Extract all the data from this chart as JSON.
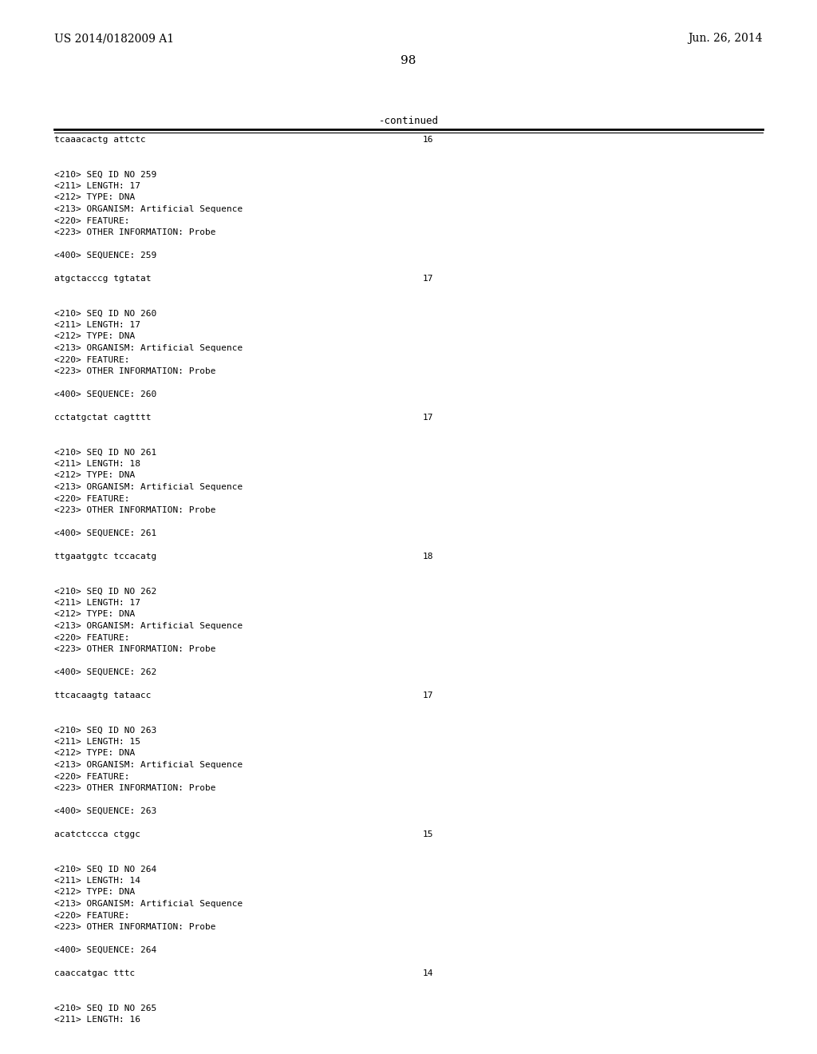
{
  "header_left": "US 2014/0182009 A1",
  "header_right": "Jun. 26, 2014",
  "page_number": "98",
  "continued_label": "-continued",
  "background_color": "#ffffff",
  "text_color": "#000000",
  "entries": [
    {
      "text": "tcaaacactg attctc",
      "is_seq": true,
      "num": "16"
    },
    {
      "text": "",
      "is_seq": false,
      "num": null
    },
    {
      "text": "",
      "is_seq": false,
      "num": null
    },
    {
      "text": "<210> SEQ ID NO 259",
      "is_seq": false,
      "num": null
    },
    {
      "text": "<211> LENGTH: 17",
      "is_seq": false,
      "num": null
    },
    {
      "text": "<212> TYPE: DNA",
      "is_seq": false,
      "num": null
    },
    {
      "text": "<213> ORGANISM: Artificial Sequence",
      "is_seq": false,
      "num": null
    },
    {
      "text": "<220> FEATURE:",
      "is_seq": false,
      "num": null
    },
    {
      "text": "<223> OTHER INFORMATION: Probe",
      "is_seq": false,
      "num": null
    },
    {
      "text": "",
      "is_seq": false,
      "num": null
    },
    {
      "text": "<400> SEQUENCE: 259",
      "is_seq": false,
      "num": null
    },
    {
      "text": "",
      "is_seq": false,
      "num": null
    },
    {
      "text": "atgctacccg tgtatat",
      "is_seq": true,
      "num": "17"
    },
    {
      "text": "",
      "is_seq": false,
      "num": null
    },
    {
      "text": "",
      "is_seq": false,
      "num": null
    },
    {
      "text": "<210> SEQ ID NO 260",
      "is_seq": false,
      "num": null
    },
    {
      "text": "<211> LENGTH: 17",
      "is_seq": false,
      "num": null
    },
    {
      "text": "<212> TYPE: DNA",
      "is_seq": false,
      "num": null
    },
    {
      "text": "<213> ORGANISM: Artificial Sequence",
      "is_seq": false,
      "num": null
    },
    {
      "text": "<220> FEATURE:",
      "is_seq": false,
      "num": null
    },
    {
      "text": "<223> OTHER INFORMATION: Probe",
      "is_seq": false,
      "num": null
    },
    {
      "text": "",
      "is_seq": false,
      "num": null
    },
    {
      "text": "<400> SEQUENCE: 260",
      "is_seq": false,
      "num": null
    },
    {
      "text": "",
      "is_seq": false,
      "num": null
    },
    {
      "text": "cctatgctat cagtttt",
      "is_seq": true,
      "num": "17"
    },
    {
      "text": "",
      "is_seq": false,
      "num": null
    },
    {
      "text": "",
      "is_seq": false,
      "num": null
    },
    {
      "text": "<210> SEQ ID NO 261",
      "is_seq": false,
      "num": null
    },
    {
      "text": "<211> LENGTH: 18",
      "is_seq": false,
      "num": null
    },
    {
      "text": "<212> TYPE: DNA",
      "is_seq": false,
      "num": null
    },
    {
      "text": "<213> ORGANISM: Artificial Sequence",
      "is_seq": false,
      "num": null
    },
    {
      "text": "<220> FEATURE:",
      "is_seq": false,
      "num": null
    },
    {
      "text": "<223> OTHER INFORMATION: Probe",
      "is_seq": false,
      "num": null
    },
    {
      "text": "",
      "is_seq": false,
      "num": null
    },
    {
      "text": "<400> SEQUENCE: 261",
      "is_seq": false,
      "num": null
    },
    {
      "text": "",
      "is_seq": false,
      "num": null
    },
    {
      "text": "ttgaatggtc tccacatg",
      "is_seq": true,
      "num": "18"
    },
    {
      "text": "",
      "is_seq": false,
      "num": null
    },
    {
      "text": "",
      "is_seq": false,
      "num": null
    },
    {
      "text": "<210> SEQ ID NO 262",
      "is_seq": false,
      "num": null
    },
    {
      "text": "<211> LENGTH: 17",
      "is_seq": false,
      "num": null
    },
    {
      "text": "<212> TYPE: DNA",
      "is_seq": false,
      "num": null
    },
    {
      "text": "<213> ORGANISM: Artificial Sequence",
      "is_seq": false,
      "num": null
    },
    {
      "text": "<220> FEATURE:",
      "is_seq": false,
      "num": null
    },
    {
      "text": "<223> OTHER INFORMATION: Probe",
      "is_seq": false,
      "num": null
    },
    {
      "text": "",
      "is_seq": false,
      "num": null
    },
    {
      "text": "<400> SEQUENCE: 262",
      "is_seq": false,
      "num": null
    },
    {
      "text": "",
      "is_seq": false,
      "num": null
    },
    {
      "text": "ttcacaagtg tataacc",
      "is_seq": true,
      "num": "17"
    },
    {
      "text": "",
      "is_seq": false,
      "num": null
    },
    {
      "text": "",
      "is_seq": false,
      "num": null
    },
    {
      "text": "<210> SEQ ID NO 263",
      "is_seq": false,
      "num": null
    },
    {
      "text": "<211> LENGTH: 15",
      "is_seq": false,
      "num": null
    },
    {
      "text": "<212> TYPE: DNA",
      "is_seq": false,
      "num": null
    },
    {
      "text": "<213> ORGANISM: Artificial Sequence",
      "is_seq": false,
      "num": null
    },
    {
      "text": "<220> FEATURE:",
      "is_seq": false,
      "num": null
    },
    {
      "text": "<223> OTHER INFORMATION: Probe",
      "is_seq": false,
      "num": null
    },
    {
      "text": "",
      "is_seq": false,
      "num": null
    },
    {
      "text": "<400> SEQUENCE: 263",
      "is_seq": false,
      "num": null
    },
    {
      "text": "",
      "is_seq": false,
      "num": null
    },
    {
      "text": "acatctccca ctggc",
      "is_seq": true,
      "num": "15"
    },
    {
      "text": "",
      "is_seq": false,
      "num": null
    },
    {
      "text": "",
      "is_seq": false,
      "num": null
    },
    {
      "text": "<210> SEQ ID NO 264",
      "is_seq": false,
      "num": null
    },
    {
      "text": "<211> LENGTH: 14",
      "is_seq": false,
      "num": null
    },
    {
      "text": "<212> TYPE: DNA",
      "is_seq": false,
      "num": null
    },
    {
      "text": "<213> ORGANISM: Artificial Sequence",
      "is_seq": false,
      "num": null
    },
    {
      "text": "<220> FEATURE:",
      "is_seq": false,
      "num": null
    },
    {
      "text": "<223> OTHER INFORMATION: Probe",
      "is_seq": false,
      "num": null
    },
    {
      "text": "",
      "is_seq": false,
      "num": null
    },
    {
      "text": "<400> SEQUENCE: 264",
      "is_seq": false,
      "num": null
    },
    {
      "text": "",
      "is_seq": false,
      "num": null
    },
    {
      "text": "caaccatgac tttc",
      "is_seq": true,
      "num": "14"
    },
    {
      "text": "",
      "is_seq": false,
      "num": null
    },
    {
      "text": "",
      "is_seq": false,
      "num": null
    },
    {
      "text": "<210> SEQ ID NO 265",
      "is_seq": false,
      "num": null
    },
    {
      "text": "<211> LENGTH: 16",
      "is_seq": false,
      "num": null
    }
  ]
}
